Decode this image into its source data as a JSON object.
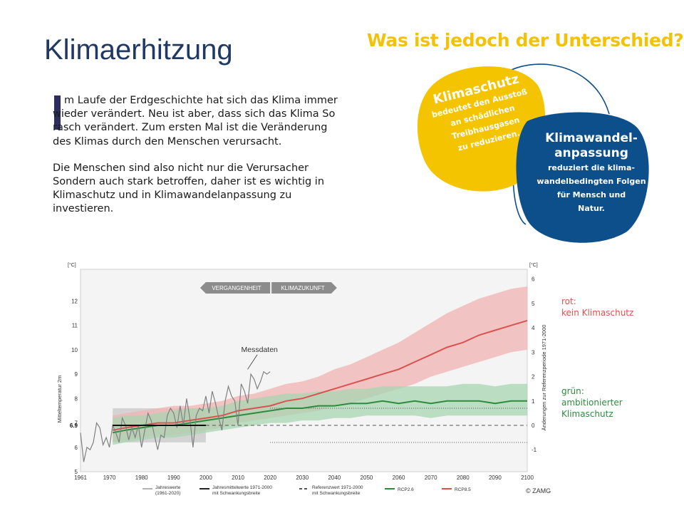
{
  "slide": {
    "title": "Klimaerhitzung",
    "headline": "Was ist jedoch der Unterschied?",
    "paragraphs": [
      "m Laufe der Erdgeschichte hat sich das Klima immer wieder verändert. Neu ist aber, dass sich das Klima So rasch verändert. Zum ersten Mal ist die Veränderung des Klimas durch den Menschen verursacht.",
      "Die Menschen sind also nicht nur die Verursacher Sondern auch stark betroffen, daher ist es wichtig in Klimaschutz und in Klimawandelanpassung zu investieren."
    ],
    "bubbles": {
      "yellow": {
        "title": "Klimaschutz",
        "lines": [
          "bedeutet den Ausstoß",
          "an schädlichen",
          "Treibhausgasen",
          "zu reduzieren."
        ],
        "color": "#f5c400"
      },
      "blue": {
        "title_lines": [
          "Klimawandel-",
          "anpassung"
        ],
        "lines": [
          "reduziert die klima-",
          "wandelbedingten Folgen",
          "für Mensch und",
          "Natur."
        ],
        "color": "#0d4f8b"
      }
    },
    "side_labels": {
      "red": [
        "rot:",
        "kein Klimaschutz"
      ],
      "green": [
        "grün:",
        "ambitionierter",
        "Klimaschutz"
      ]
    }
  },
  "chart_data": {
    "type": "line",
    "x_ticks": [
      "1961",
      "1970",
      "1980",
      "1990",
      "2000",
      "2010",
      "2020",
      "2030",
      "2040",
      "2050",
      "2060",
      "2070",
      "2080",
      "2090",
      "2100"
    ],
    "y_left_ticks": [
      "5",
      "6",
      "7",
      "8",
      "9",
      "10",
      "11",
      "12"
    ],
    "y_left_unit": "[°C]",
    "y_left_label": "Mitteltemperatur 2m",
    "y_left_ref_value": "6.9",
    "y_right_ticks": [
      "-1",
      "0",
      "1",
      "2",
      "3",
      "4",
      "5",
      "6"
    ],
    "y_right_unit": "[°C]",
    "y_right_label": "Änderungen zur Referenzperiode 1971-2000",
    "xlim": [
      1961,
      2100
    ],
    "ylim": [
      5,
      13.3
    ],
    "arrow_past": "VERGANGENHEIT",
    "arrow_future": "KLIMAZUKUNFT",
    "annotation": "Messdaten",
    "copyright": "© ZAMG",
    "legend": [
      {
        "label": "Jahreswerte\n(1961-2020)",
        "color": "#808080",
        "style": "solid-thin"
      },
      {
        "label": "Jahresmittelwerte 1971-2000\nmit Schwankungsbreite",
        "color": "#222222",
        "style": "solid"
      },
      {
        "label": "Referenzwert 1971-2000\nmit Schwankungsbreite",
        "color": "#555555",
        "style": "dashed"
      },
      {
        "label": "RCP2.6",
        "color": "#2e8b3e",
        "style": "solid"
      },
      {
        "label": "RCP8.5",
        "color": "#d9534f",
        "style": "solid"
      }
    ],
    "reference_mean": 6.9,
    "reference_band": [
      6.2,
      7.6
    ],
    "reference_period": [
      1971,
      2000
    ],
    "series": [
      {
        "name": "Jahreswerte",
        "color": "#808080",
        "x": [
          1961,
          1962,
          1963,
          1964,
          1965,
          1966,
          1967,
          1968,
          1969,
          1970,
          1971,
          1972,
          1973,
          1974,
          1975,
          1976,
          1977,
          1978,
          1979,
          1980,
          1981,
          1982,
          1983,
          1984,
          1985,
          1986,
          1987,
          1988,
          1989,
          1990,
          1991,
          1992,
          1993,
          1994,
          1995,
          1996,
          1997,
          1998,
          1999,
          2000,
          2001,
          2002,
          2003,
          2004,
          2005,
          2006,
          2007,
          2008,
          2009,
          2010,
          2011,
          2012,
          2013,
          2014,
          2015,
          2016,
          2017,
          2018,
          2019,
          2020
        ],
        "y": [
          6.6,
          5.4,
          6.0,
          5.9,
          6.2,
          7.0,
          6.8,
          6.1,
          6.4,
          6.0,
          6.9,
          6.6,
          6.2,
          7.2,
          6.9,
          6.3,
          6.8,
          6.4,
          6.9,
          6.0,
          6.7,
          7.4,
          7.1,
          6.5,
          5.9,
          6.5,
          6.4,
          7.3,
          7.6,
          7.4,
          6.8,
          7.7,
          6.9,
          8.0,
          7.2,
          6.0,
          7.3,
          7.6,
          7.5,
          8.1,
          7.4,
          8.3,
          7.8,
          7.2,
          6.7,
          7.9,
          8.5,
          8.1,
          7.9,
          6.9,
          8.6,
          8.3,
          7.8,
          9.0,
          8.8,
          8.4,
          8.7,
          9.1,
          9.0,
          9.1
        ]
      },
      {
        "name": "RCP8.5",
        "color": "#d9534f",
        "band_color": "#f0b3b3",
        "x": [
          1971,
          1975,
          1980,
          1985,
          1990,
          1995,
          2000,
          2005,
          2010,
          2015,
          2020,
          2025,
          2030,
          2035,
          2040,
          2045,
          2050,
          2055,
          2060,
          2065,
          2070,
          2075,
          2080,
          2085,
          2090,
          2095,
          2100
        ],
        "y": [
          6.7,
          6.8,
          6.9,
          7.0,
          7.0,
          7.1,
          7.2,
          7.3,
          7.5,
          7.6,
          7.7,
          7.9,
          8.0,
          8.2,
          8.4,
          8.6,
          8.8,
          9.0,
          9.2,
          9.5,
          9.8,
          10.1,
          10.3,
          10.6,
          10.8,
          11.0,
          11.2
        ],
        "lower": [
          6.2,
          6.3,
          6.4,
          6.5,
          6.5,
          6.6,
          6.7,
          6.8,
          7.0,
          7.1,
          7.2,
          7.3,
          7.4,
          7.5,
          7.7,
          7.8,
          8.0,
          8.2,
          8.4,
          8.6,
          8.9,
          9.1,
          9.3,
          9.5,
          9.7,
          9.9,
          10.0
        ],
        "upper": [
          7.3,
          7.4,
          7.5,
          7.6,
          7.7,
          7.7,
          7.8,
          7.9,
          8.1,
          8.2,
          8.4,
          8.6,
          8.7,
          8.9,
          9.2,
          9.4,
          9.7,
          10.0,
          10.3,
          10.7,
          11.1,
          11.5,
          11.8,
          12.1,
          12.3,
          12.5,
          12.6
        ]
      },
      {
        "name": "RCP2.6",
        "color": "#2e8b3e",
        "band_color": "#a8d5b1",
        "x": [
          1971,
          1975,
          1980,
          1985,
          1990,
          1995,
          2000,
          2005,
          2010,
          2015,
          2020,
          2025,
          2030,
          2035,
          2040,
          2045,
          2050,
          2055,
          2060,
          2065,
          2070,
          2075,
          2080,
          2085,
          2090,
          2095,
          2100
        ],
        "y": [
          6.6,
          6.7,
          6.8,
          6.9,
          6.9,
          7.0,
          7.1,
          7.2,
          7.3,
          7.4,
          7.5,
          7.6,
          7.6,
          7.7,
          7.7,
          7.8,
          7.8,
          7.9,
          7.8,
          7.9,
          7.8,
          7.9,
          7.9,
          7.9,
          7.8,
          7.9,
          7.9
        ],
        "lower": [
          6.1,
          6.2,
          6.3,
          6.4,
          6.4,
          6.5,
          6.6,
          6.7,
          6.8,
          6.9,
          7.0,
          7.0,
          7.1,
          7.1,
          7.2,
          7.2,
          7.3,
          7.3,
          7.3,
          7.3,
          7.2,
          7.3,
          7.3,
          7.3,
          7.3,
          7.3,
          7.3
        ],
        "upper": [
          7.2,
          7.3,
          7.3,
          7.4,
          7.5,
          7.6,
          7.6,
          7.7,
          7.9,
          8.0,
          8.1,
          8.2,
          8.2,
          8.3,
          8.3,
          8.4,
          8.4,
          8.5,
          8.5,
          8.5,
          8.5,
          8.5,
          8.6,
          8.6,
          8.5,
          8.6,
          8.6
        ]
      }
    ]
  }
}
